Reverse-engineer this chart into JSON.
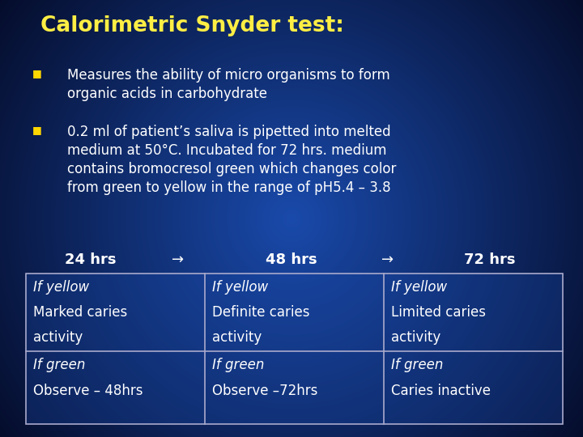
{
  "title": "Calorimetric Snyder test:",
  "title_color": "#FFEE44",
  "title_fontsize": 19,
  "bg_color_center": "#1a4aaa",
  "bg_color_edge": "#050d2a",
  "bullet_color": "#FFD700",
  "text_color": "#FFFFFF",
  "bullet1": "Measures the ability of micro organisms to form\norganic acids in carbohydrate",
  "bullet2": "0.2 ml of patient’s saliva is pipetted into melted\nmedium at 50°C. Incubated for 72 hrs. medium\ncontains bromocresol green which changes color\nfrom green to yellow in the range of pH5.4 – 3.8",
  "header_row": [
    "24 hrs",
    "→",
    "48 hrs",
    "→",
    "72 hrs"
  ],
  "table_rows": [
    [
      "If yellow\nMarked caries\nactivity",
      "If yellow\nDefinite caries\nactivity",
      "If yellow\nLimited caries\nactivity"
    ],
    [
      "If green\nObserve – 48hrs",
      "If green\nObserve –72hrs",
      "If green\nCaries inactive"
    ]
  ],
  "table_border_color": "#AAAACC",
  "italic_color": "#FFFFFF",
  "normal_color": "#FFFFFF",
  "table_bg": "#1a4aaa",
  "bullet_text_fontsize": 12,
  "header_fontsize": 13,
  "cell_fontsize": 12
}
